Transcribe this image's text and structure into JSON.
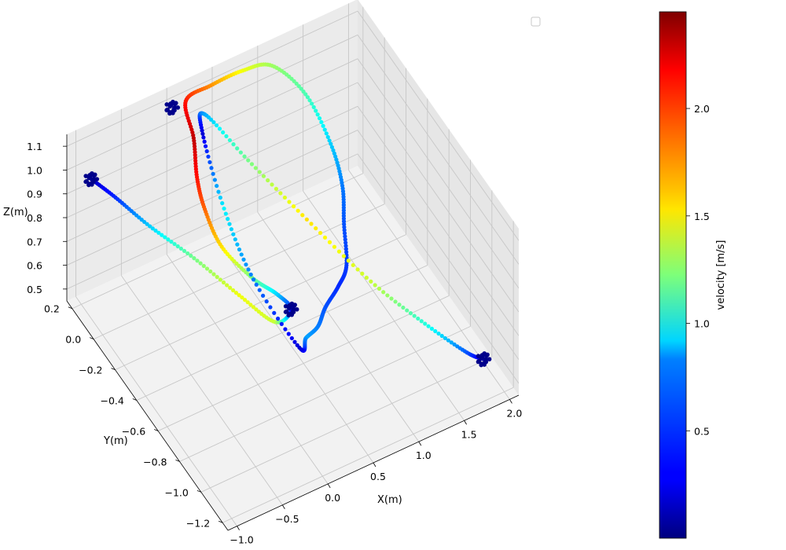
{
  "chart_data": {
    "type": "scatter3d",
    "title": "",
    "xlabel": "X(m)",
    "ylabel": "Y(m)",
    "zlabel": "Z(m)",
    "xlim": [
      -1.1,
      2.1
    ],
    "ylim": [
      -1.25,
      0.25
    ],
    "zlim": [
      0.45,
      1.15
    ],
    "xticks": [
      "−1.0",
      "−0.5",
      "0.0",
      "0.5",
      "1.0",
      "1.5",
      "2.0"
    ],
    "yticks": [
      "0.2",
      "0.0",
      "−0.2",
      "−0.4",
      "−0.6",
      "−0.8",
      "−1.0",
      "−1.2"
    ],
    "zticks": [
      "0.5",
      "0.6",
      "0.7",
      "0.8",
      "0.9",
      "1.0",
      "1.1"
    ],
    "grid": true,
    "legend": "top-right (empty)",
    "colorbar": {
      "label": "velocity [m/s]",
      "colormap": "jet",
      "range": [
        0.0,
        2.45
      ],
      "ticks": [
        "0.5",
        "1.0",
        "1.5",
        "2.0"
      ]
    },
    "waypoints": [
      {
        "x": -0.95,
        "y": 0.15,
        "z": 1.0
      },
      {
        "x": -0.05,
        "y": -0.95,
        "z": 1.0
      },
      {
        "x": 0.0,
        "y": 0.2,
        "z": 1.1
      },
      {
        "x": 1.95,
        "y": -1.05,
        "z": 0.5
      }
    ],
    "series": [
      {
        "x": [
          -0.95,
          -0.8,
          -0.6,
          -0.35,
          -0.15,
          -0.05,
          -0.05,
          -0.15,
          -0.3,
          -0.4,
          -0.35,
          -0.2,
          0.0,
          0.15,
          0.45,
          0.8,
          1.1,
          1.35,
          1.45,
          1.4,
          1.3,
          1.15,
          1.0,
          0.8,
          0.6,
          0.35,
          0.1,
          -0.05,
          -0.02,
          0.1,
          0.3,
          0.6,
          0.95,
          1.3,
          1.6,
          1.85,
          1.95
        ],
        "y": [
          0.15,
          0.05,
          -0.1,
          -0.3,
          -0.55,
          -0.8,
          -0.95,
          -0.9,
          -0.8,
          -0.6,
          -0.4,
          -0.2,
          0.0,
          0.2,
          0.22,
          0.22,
          0.2,
          0.1,
          -0.05,
          -0.2,
          -0.3,
          -0.45,
          -0.5,
          -0.55,
          -0.65,
          -0.75,
          -0.9,
          -0.6,
          -0.3,
          0.0,
          0.15,
          0.0,
          -0.25,
          -0.55,
          -0.8,
          -0.98,
          -1.05
        ],
        "z": [
          1.0,
          0.96,
          0.9,
          0.85,
          0.82,
          0.85,
          1.0,
          1.05,
          1.08,
          1.1,
          1.12,
          1.1,
          1.1,
          1.1,
          1.1,
          1.1,
          1.08,
          0.98,
          0.85,
          0.78,
          0.7,
          0.65,
          0.62,
          0.6,
          0.62,
          0.68,
          0.78,
          0.9,
          1.0,
          1.1,
          1.05,
          0.9,
          0.75,
          0.62,
          0.55,
          0.5,
          0.5
        ],
        "velocity": [
          0.1,
          0.4,
          0.8,
          1.2,
          1.5,
          1.4,
          0.3,
          0.8,
          1.2,
          1.6,
          1.9,
          2.1,
          2.3,
          2.1,
          1.8,
          1.5,
          1.3,
          1.1,
          0.8,
          0.6,
          0.5,
          0.45,
          0.4,
          0.5,
          0.6,
          0.7,
          0.2,
          0.6,
          0.9,
          0.2,
          0.7,
          1.2,
          1.6,
          1.4,
          1.0,
          0.5,
          0.1
        ]
      }
    ]
  }
}
